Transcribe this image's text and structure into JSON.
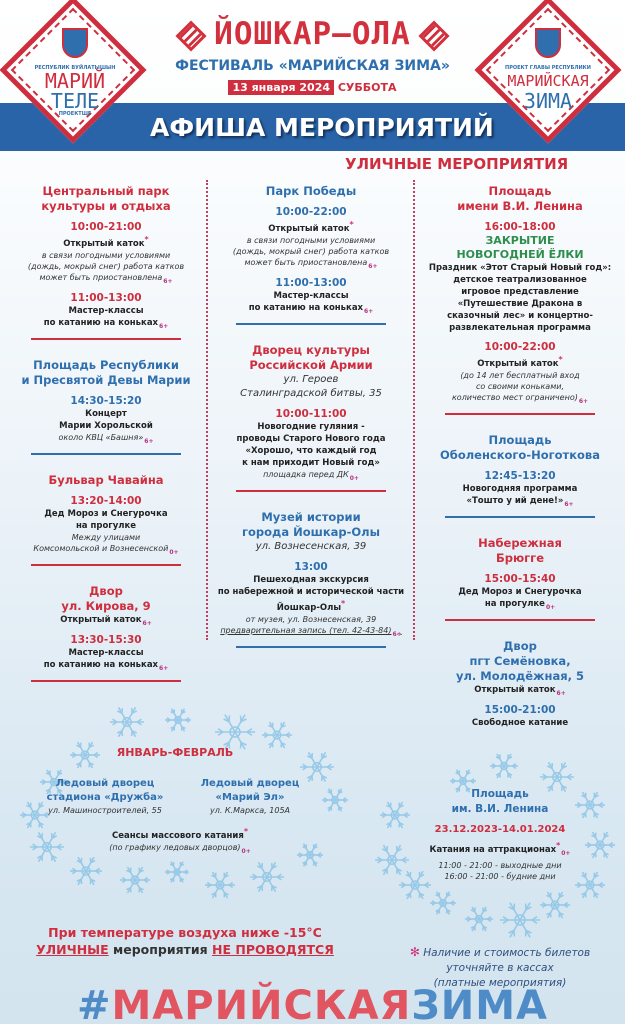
{
  "colors": {
    "red": "#cf2e3e",
    "blue": "#2f6fae",
    "green": "#2f8e4e",
    "band": "#2a64a8",
    "age": "#b8307d"
  },
  "header": {
    "city": "ЙОШКАР–ОЛА",
    "festival": "ФЕСТИВАЛЬ «МАРИЙСКАЯ ЗИМА»",
    "date": "13 января 2024",
    "weekday": "СУББОТА",
    "band_title": "АФИША МЕРОПРИЯТИЙ",
    "logo_left": {
      "top": "РЕСПУБЛИК ВУЙЛАТЫШЫН",
      "line1": "МАРИЙ",
      "line2": "ТЕЛЕ",
      "bottom": "ПРОЕКТШЕ"
    },
    "logo_right": {
      "top": "ПРОЕКТ ГЛАВЫ РЕСПУБЛИКИ",
      "line1": "МАРИЙСКАЯ",
      "line2": "ЗИМА"
    }
  },
  "section_title": "УЛИЧНЫЕ МЕРОПРИЯТИЯ",
  "columns": [
    [
      {
        "color": "red",
        "title": [
          "Центральный парк",
          "культуры и отдыха"
        ],
        "lines": [
          {
            "k": "tm",
            "text": "10:00-21:00"
          },
          {
            "k": "nm",
            "text": "Открытый каток",
            "star": true
          },
          {
            "k": "nt",
            "text": "в связи погодными условиями"
          },
          {
            "k": "nt",
            "text": "(дождь, мокрый снег) работа катков"
          },
          {
            "k": "nt",
            "text": "может быть приостановлена",
            "age": "6+"
          },
          {
            "k": "tm",
            "text": "11:00-13:00"
          },
          {
            "k": "nm",
            "text": "Мастер-классы"
          },
          {
            "k": "nm",
            "text": "по катанию на коньках",
            "age": "6+"
          }
        ]
      },
      {
        "color": "blue",
        "title": [
          "Площадь Республики",
          "и Пресвятой Девы Марии"
        ],
        "lines": [
          {
            "k": "tm",
            "text": "14:30-15:20"
          },
          {
            "k": "nm",
            "text": "Концерт"
          },
          {
            "k": "nm",
            "text": "Марии Хорольской"
          },
          {
            "k": "nt",
            "text": "около КВЦ «Башня»",
            "age": "6+"
          }
        ]
      },
      {
        "color": "red",
        "title": [
          "Бульвар Чавайна"
        ],
        "lines": [
          {
            "k": "tm",
            "text": "13:20-14:00"
          },
          {
            "k": "nm",
            "text": "Дед Мороз и Снегурочка"
          },
          {
            "k": "nm",
            "text": "на прогулке"
          },
          {
            "k": "nt",
            "text": "Между улицами"
          },
          {
            "k": "nt",
            "text": "Комсомольской и Вознесенской",
            "age": "0+"
          }
        ]
      },
      {
        "color": "red",
        "title": [
          "Двор",
          "ул. Кирова, 9"
        ],
        "lines": [
          {
            "k": "nm",
            "text": "Открытый каток",
            "age": "6+"
          },
          {
            "k": "tm",
            "text": "13:30-15:30"
          },
          {
            "k": "nm",
            "text": "Мастер-классы"
          },
          {
            "k": "nm",
            "text": "по катанию на коньках",
            "age": "6+"
          }
        ]
      }
    ],
    [
      {
        "color": "blue",
        "title": [
          "Парк Победы"
        ],
        "lines": [
          {
            "k": "tm",
            "text": "10:00-22:00"
          },
          {
            "k": "nm",
            "text": "Открытый каток",
            "star": true
          },
          {
            "k": "nt",
            "text": "в связи погодными условиями"
          },
          {
            "k": "nt",
            "text": "(дождь, мокрый снег) работа катков"
          },
          {
            "k": "nt",
            "text": "может быть приостановлена",
            "age": "6+"
          },
          {
            "k": "tm",
            "text": "11:00-13:00"
          },
          {
            "k": "nm",
            "text": "Мастер-классы"
          },
          {
            "k": "nm",
            "text": "по катанию на коньках",
            "age": "6+"
          }
        ]
      },
      {
        "color": "red",
        "title": [
          "Дворец культуры",
          "Российской Армии"
        ],
        "address": [
          "ул. Героев",
          "Сталинградской битвы, 35"
        ],
        "lines": [
          {
            "k": "tm",
            "text": "10:00-11:00"
          },
          {
            "k": "nm",
            "text": "Новогодние гуляния -"
          },
          {
            "k": "nm",
            "text": "проводы Старого Нового года"
          },
          {
            "k": "nm",
            "text": "«Хорошо, что каждый год"
          },
          {
            "k": "nm",
            "text": "к нам приходит Новый год»"
          },
          {
            "k": "nt",
            "text": "площадка перед ДК",
            "age": "0+"
          }
        ]
      },
      {
        "color": "blue",
        "title": [
          "Музей истории",
          "города Йошкар-Олы"
        ],
        "address": [
          "ул. Вознесенская, 39"
        ],
        "lines": [
          {
            "k": "tm",
            "text": "13:00"
          },
          {
            "k": "nm",
            "text": "Пешеходная экскурсия"
          },
          {
            "k": "nm",
            "text": "по набережной и исторической части"
          },
          {
            "k": "nm",
            "text": "Йошкар-Олы",
            "star": true
          },
          {
            "k": "nt",
            "text": "от музея, ул. Вознесенская, 39"
          },
          {
            "k": "nt",
            "text": "предварительная запись (тел. 42-43-84)",
            "ul": true,
            "age": "6+"
          }
        ]
      }
    ],
    [
      {
        "color": "red",
        "title": [
          "Площадь",
          "имени В.И. Ленина"
        ],
        "lines": [
          {
            "k": "tm",
            "text": "16:00-18:00"
          },
          {
            "k": "gr",
            "text": "ЗАКРЫТИЕ"
          },
          {
            "k": "gr",
            "text": "НОВОГОДНЕЙ ЁЛКИ"
          },
          {
            "k": "nm",
            "text": "Праздник «Этот Старый Новый год»:"
          },
          {
            "k": "nm",
            "text": "детское театрализованное"
          },
          {
            "k": "nm",
            "text": "игровое представление"
          },
          {
            "k": "nm",
            "text": "«Путешествие Дракона в"
          },
          {
            "k": "nm",
            "text": "сказочный лес» и концертно-"
          },
          {
            "k": "nm",
            "text": "развлекательная программа"
          },
          {
            "k": "tm",
            "text": "10:00-22:00"
          },
          {
            "k": "nm",
            "text": "Открытый каток",
            "star": true
          },
          {
            "k": "nt",
            "text": "(до 14 лет бесплатный вход"
          },
          {
            "k": "nt",
            "text": "со своими коньками,"
          },
          {
            "k": "nt",
            "text": "количество мест ограничено)",
            "age": "6+"
          }
        ]
      },
      {
        "color": "blue",
        "title": [
          "Площадь",
          "Оболенского-Ноготкова"
        ],
        "lines": [
          {
            "k": "tm",
            "text": "12:45-13:20"
          },
          {
            "k": "nm",
            "text": "Новогодняя программа"
          },
          {
            "k": "nm",
            "text": "«Тошто у ий дене!»",
            "age": "6+"
          }
        ]
      },
      {
        "color": "red",
        "title": [
          "Набережная",
          "Брюгге"
        ],
        "lines": [
          {
            "k": "tm",
            "text": "15:00-15:40"
          },
          {
            "k": "nm",
            "text": "Дед Мороз и Снегурочка"
          },
          {
            "k": "nm",
            "text": "на прогулке",
            "age": "0+"
          }
        ]
      },
      {
        "color": "blue",
        "title": [
          "Двор",
          "пгт Семёновка,",
          "ул. Молодёжная, 5"
        ],
        "nosep": true,
        "lines": [
          {
            "k": "nm",
            "text": "Открытый каток",
            "age": "6+"
          },
          {
            "k": "tm",
            "text": "15:00-21:00"
          },
          {
            "k": "nm",
            "text": "Свободное катание"
          }
        ]
      }
    ]
  ],
  "ice": {
    "period": "ЯНВАРЬ-ФЕВРАЛЬ",
    "venue1": {
      "title": [
        "Ледовый дворец",
        "стадиона «Дружба»"
      ],
      "address": "ул. Машиностроителей, 55"
    },
    "venue2": {
      "title": [
        "Ледовый дворец",
        "«Марий Эл»"
      ],
      "address": "ул. К.Маркса, 105А"
    },
    "event": "Сеансы массового катания",
    "note": "(по графику ледовых дворцов)",
    "age": "0+"
  },
  "lenin_rides": {
    "title": [
      "Площадь",
      "им. В.И. Ленина"
    ],
    "dates": "23.12.2023-14.01.2024",
    "event": "Катания на аттракционах",
    "age": "0+",
    "schedule": [
      "11:00 - 21:00 - выходные дни",
      "16:00 - 21:00 - будние дни"
    ]
  },
  "footer": {
    "warning_line1": "При температуре воздуха ниже -15°С",
    "warning_w1": "УЛИЧНЫЕ",
    "warning_w2": " мероприятия ",
    "warning_w3": "НЕ ПРОВОДЯТСЯ",
    "tickets": [
      "Наличие и стоимость билетов",
      "уточняйте в кассах",
      "(платные мероприятия)"
    ],
    "hash": "#",
    "hash_red": "МАРИЙСКАЯ",
    "hash_blue": "ЗИМА"
  }
}
